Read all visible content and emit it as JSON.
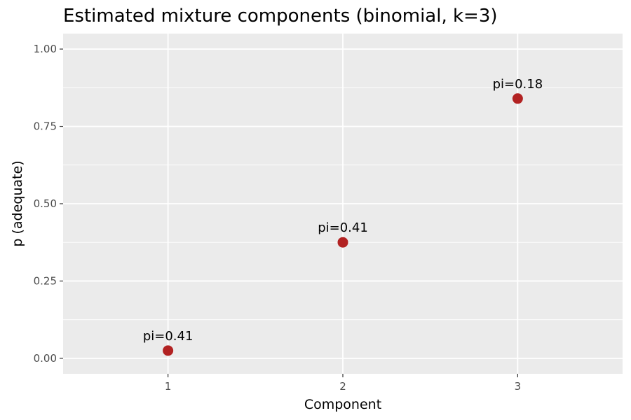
{
  "chart_data": {
    "type": "scatter",
    "title": "Estimated mixture components (binomial, k=3)",
    "xlabel": "Component",
    "ylabel": "p (adequate)",
    "x": [
      1,
      2,
      3
    ],
    "y": [
      0.025,
      0.375,
      0.84
    ],
    "point_labels": [
      "pi=0.41",
      "pi=0.41",
      "pi=0.18"
    ],
    "xlim": [
      0.4,
      3.6
    ],
    "ylim": [
      -0.05,
      1.05
    ],
    "x_ticks": [
      1,
      2,
      3
    ],
    "x_tick_labels": [
      "1",
      "2",
      "3"
    ],
    "y_ticks": [
      0,
      0.25,
      0.5,
      0.75,
      1.0
    ],
    "y_tick_labels": [
      "0.00",
      "0.25",
      "0.50",
      "0.75",
      "1.00"
    ],
    "grid": true,
    "legend": "none",
    "colors": {
      "point": "#b22222",
      "panel_background": "#ebebeb",
      "grid": "#ffffff"
    }
  }
}
